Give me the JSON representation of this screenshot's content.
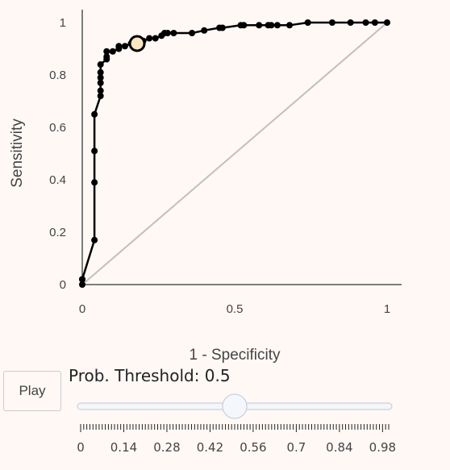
{
  "chart_data": {
    "type": "line",
    "title": "",
    "xlabel": "1 - Specificity",
    "ylabel": "Sensitivity",
    "xlim": [
      0,
      1
    ],
    "ylim": [
      0,
      1
    ],
    "x_ticks": [
      "0",
      "0.5",
      "1"
    ],
    "y_ticks": [
      "0",
      "0.2",
      "0.4",
      "0.6",
      "0.8",
      "1"
    ],
    "grid": false,
    "legend": "none",
    "series": [
      {
        "type": "line",
        "color": "#000000",
        "x": [
          0,
          0,
          0,
          0.04,
          0.04,
          0.04,
          0.04,
          0.06,
          0.06,
          0.06,
          0.06,
          0.06,
          0.06,
          0.08,
          0.08,
          0.08,
          0.1,
          0.12,
          0.12,
          0.14,
          0.16,
          0.18,
          0.2,
          0.22,
          0.24,
          0.26,
          0.27,
          0.28,
          0.3,
          0.36,
          0.4,
          0.45,
          0.46,
          0.52,
          0.53,
          0.58,
          0.61,
          0.62,
          0.64,
          0.68,
          0.74,
          0.82,
          0.88,
          0.93,
          0.96,
          1
        ],
        "y": [
          0,
          0.02,
          0.02,
          0.17,
          0.39,
          0.51,
          0.65,
          0.72,
          0.74,
          0.77,
          0.79,
          0.81,
          0.84,
          0.86,
          0.87,
          0.89,
          0.89,
          0.9,
          0.91,
          0.91,
          0.92,
          0.92,
          0.93,
          0.94,
          0.94,
          0.95,
          0.96,
          0.96,
          0.96,
          0.96,
          0.97,
          0.98,
          0.98,
          0.99,
          0.99,
          0.99,
          0.99,
          0.99,
          0.99,
          0.99,
          1,
          1,
          1,
          1,
          1,
          1
        ]
      },
      {
        "type": "line",
        "color": "#c0c0c0",
        "x": [
          0,
          1
        ],
        "y": [
          0,
          1
        ]
      }
    ],
    "highlight_point": {
      "x": 0.18,
      "y": 0.92,
      "color": "#fbe6c2"
    }
  },
  "controls": {
    "play_label": "Play",
    "slider_label": "Prob. Threshold: 0.5",
    "slider_value": 0.5,
    "slider_range": [
      0,
      1
    ],
    "slider_tick_labels": [
      "0",
      "0.14",
      "0.28",
      "0.42",
      "0.56",
      "0.7",
      "0.84",
      "0.98"
    ]
  }
}
